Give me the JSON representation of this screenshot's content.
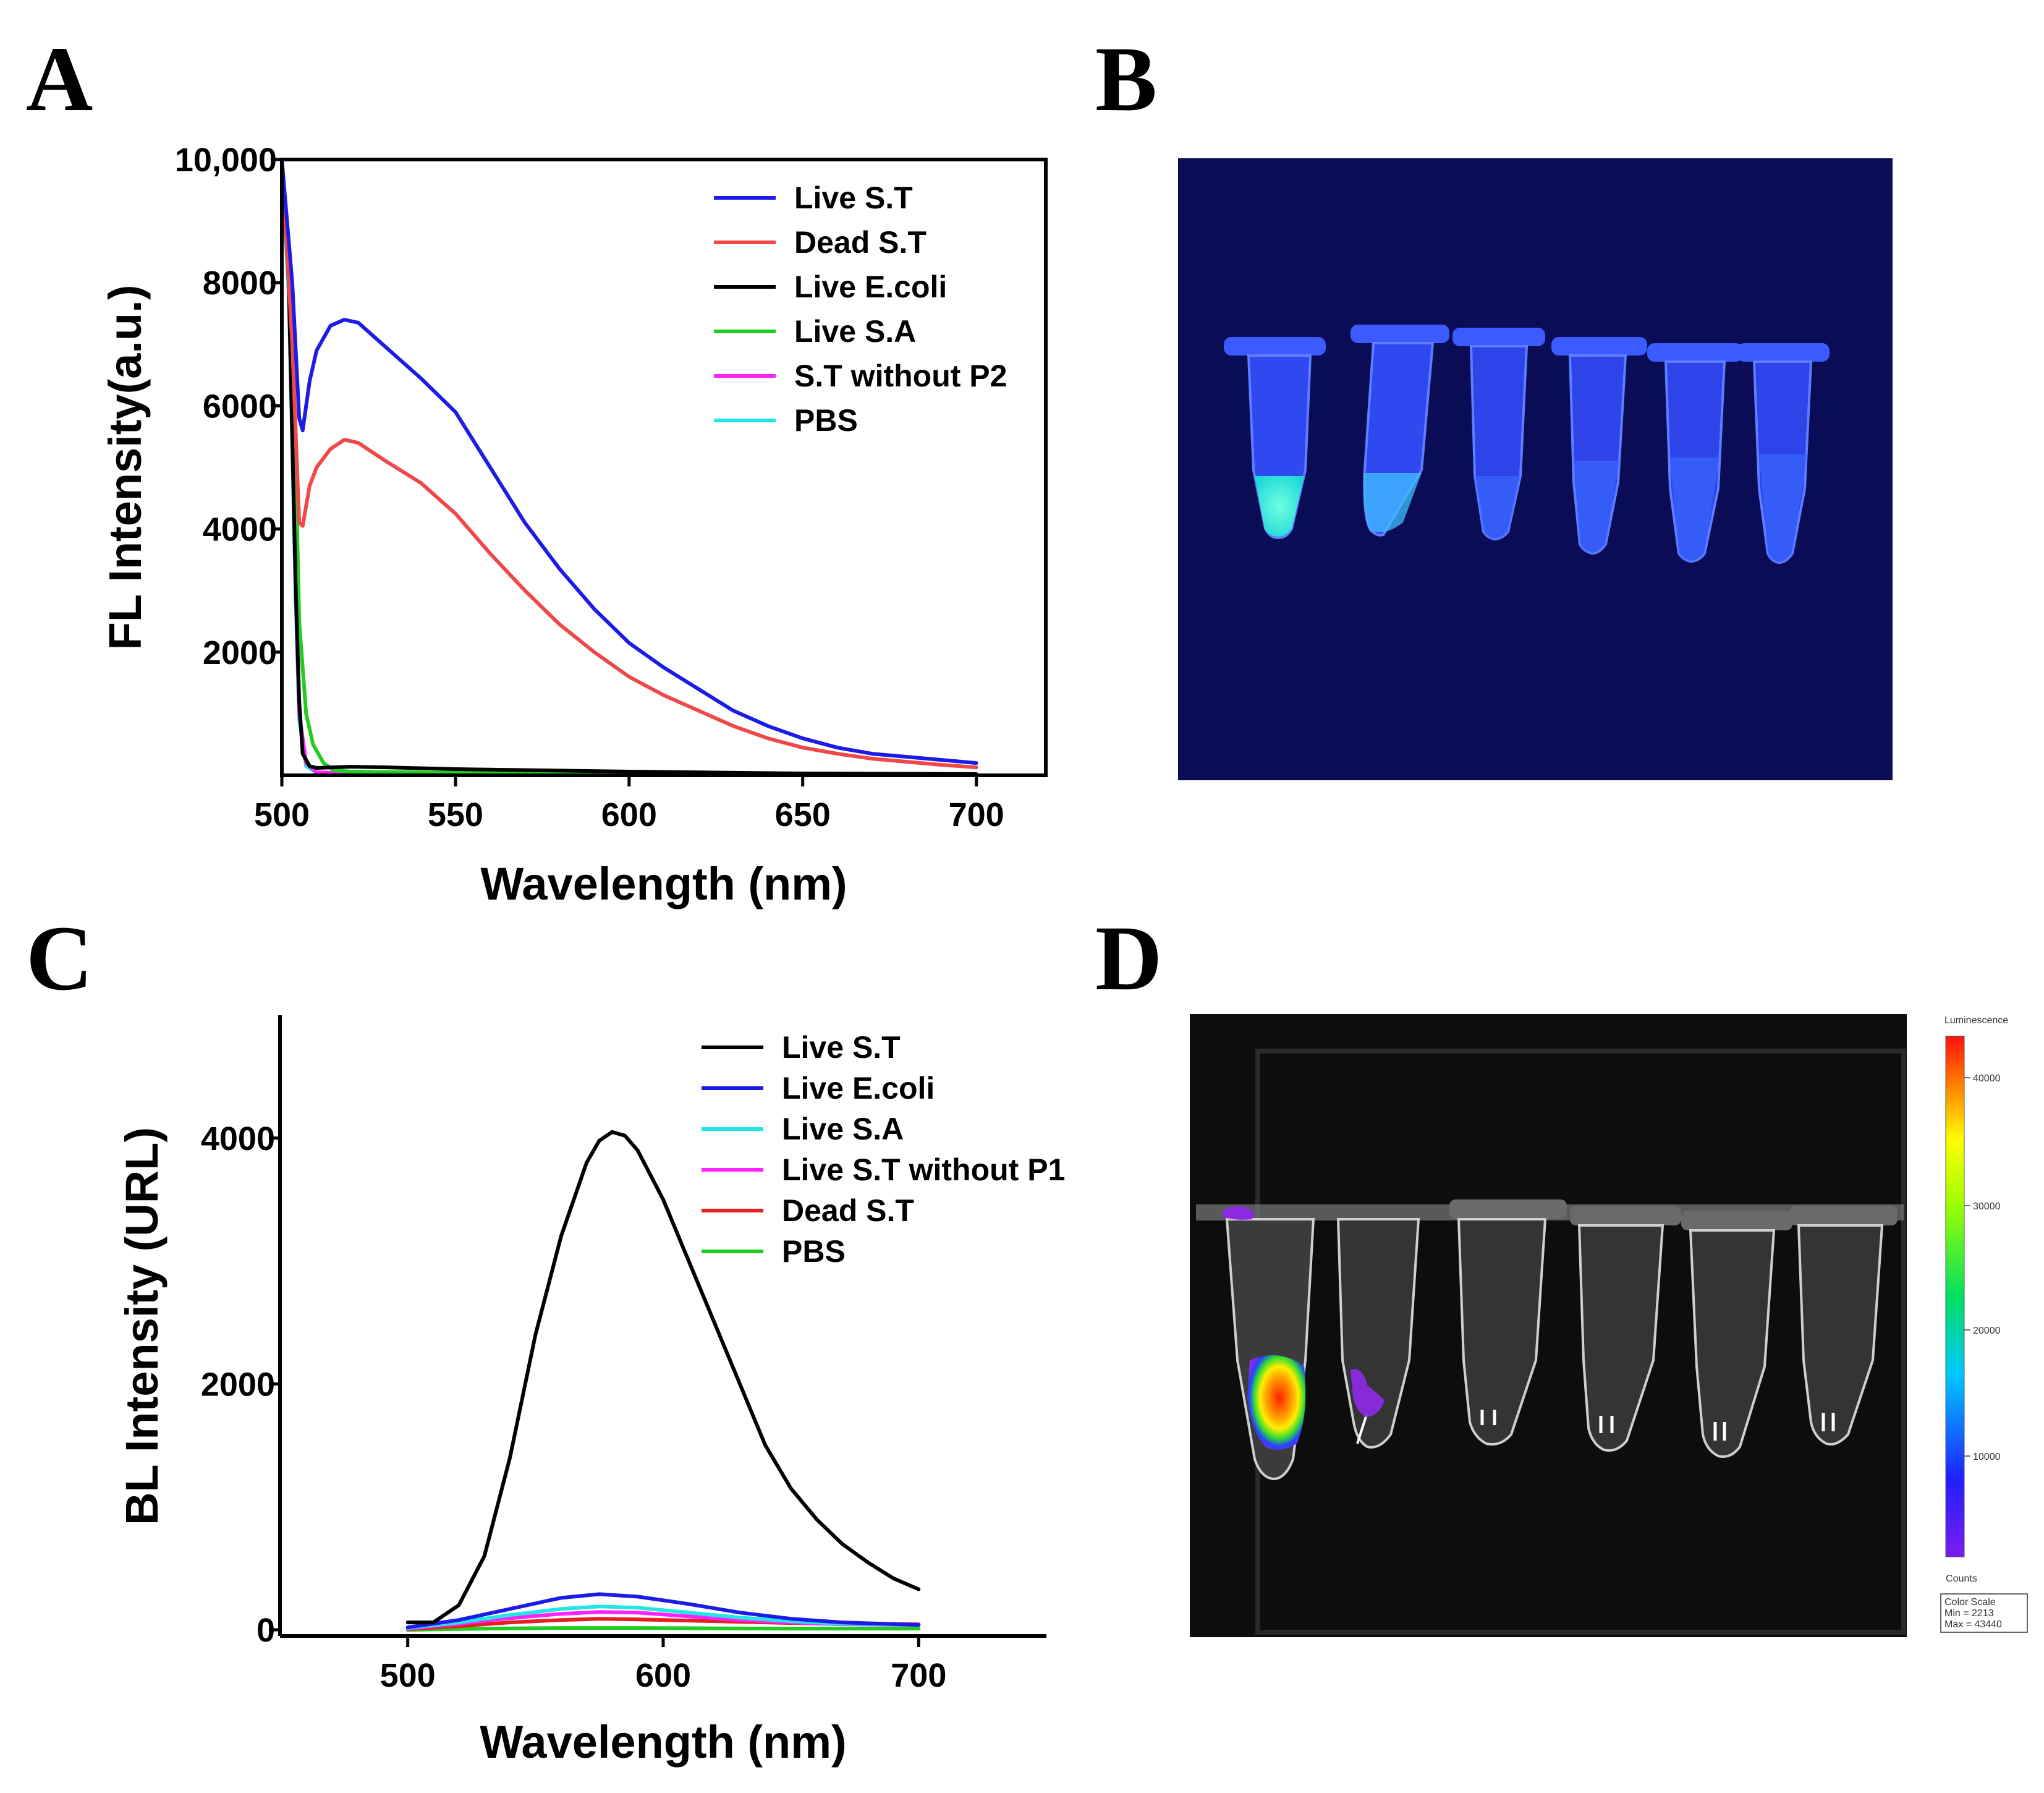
{
  "panels": {
    "a": "A",
    "b": "B",
    "c": "C",
    "d": "D"
  },
  "colors": {
    "blue": "#1c1ce6",
    "red": "#f04848",
    "black": "#000000",
    "green": "#22cc22",
    "magenta": "#ff22ff",
    "cyan": "#22e6e6"
  },
  "chart_data": [
    {
      "id": "A",
      "type": "line",
      "xlabel": "Wavelength (nm)",
      "ylabel": "FL Intensity(a.u.)",
      "xlim": [
        500,
        720
      ],
      "ylim": [
        0,
        10000
      ],
      "xticks": [
        500,
        550,
        600,
        650,
        700
      ],
      "xtick_labels": [
        "500",
        "550",
        "600",
        "650",
        "700"
      ],
      "yticks": [
        2000,
        4000,
        6000,
        8000,
        10000
      ],
      "ytick_labels": [
        "2000",
        "4000",
        "6000",
        "8000",
        "10,000"
      ],
      "legend_position": "top-right",
      "series": [
        {
          "name": "Live S.T",
          "color": "#1c1ce6",
          "x": [
            500,
            503,
            505,
            506,
            508,
            510,
            514,
            518,
            522,
            530,
            540,
            550,
            560,
            570,
            580,
            590,
            600,
            610,
            620,
            630,
            640,
            650,
            660,
            670,
            680,
            690,
            700
          ],
          "y": [
            10000,
            8000,
            5800,
            5600,
            6400,
            6900,
            7300,
            7400,
            7350,
            6950,
            6450,
            5900,
            5000,
            4100,
            3350,
            2700,
            2150,
            1750,
            1400,
            1050,
            800,
            600,
            450,
            350,
            300,
            250,
            200
          ]
        },
        {
          "name": "Dead S.T",
          "color": "#f04848",
          "x": [
            500,
            503,
            505,
            506,
            508,
            510,
            514,
            518,
            522,
            530,
            540,
            550,
            560,
            570,
            580,
            590,
            600,
            610,
            620,
            630,
            640,
            650,
            660,
            670,
            680,
            690,
            700
          ],
          "y": [
            10000,
            7000,
            4100,
            4050,
            4700,
            5000,
            5300,
            5450,
            5400,
            5100,
            4750,
            4250,
            3600,
            3000,
            2450,
            2000,
            1600,
            1300,
            1050,
            800,
            600,
            450,
            350,
            270,
            220,
            170,
            130
          ]
        },
        {
          "name": "Live E.coli",
          "color": "#000000",
          "x": [
            500,
            502,
            504,
            505,
            506,
            508,
            510,
            520,
            530,
            550,
            600,
            650,
            700
          ],
          "y": [
            10000,
            8000,
            3000,
            1200,
            350,
            150,
            120,
            140,
            130,
            100,
            60,
            30,
            20
          ]
        },
        {
          "name": "Live S.A",
          "color": "#22cc22",
          "x": [
            500,
            502,
            504,
            505,
            507,
            509,
            512,
            515,
            520,
            550,
            600,
            650,
            700
          ],
          "y": [
            10000,
            8500,
            5000,
            2500,
            1000,
            500,
            200,
            80,
            60,
            40,
            30,
            20,
            10
          ]
        },
        {
          "name": "S.T without P2",
          "color": "#ff22ff",
          "x": [
            500,
            502,
            504,
            505,
            507,
            510,
            520,
            550,
            600,
            650,
            700
          ],
          "y": [
            10000,
            8000,
            3000,
            1000,
            200,
            50,
            30,
            20,
            15,
            10,
            10
          ]
        },
        {
          "name": "PBS",
          "color": "#22e6e6",
          "x": [
            500,
            502,
            504,
            505,
            507,
            510,
            520,
            550,
            600,
            650,
            700
          ],
          "y": [
            10000,
            7800,
            2800,
            900,
            150,
            40,
            25,
            15,
            10,
            8,
            5
          ]
        }
      ]
    },
    {
      "id": "C",
      "type": "line",
      "xlabel": "Wavelength (nm)",
      "ylabel": "BL Intensity (URL)",
      "xlim": [
        450,
        750
      ],
      "ylim": [
        -50,
        5000
      ],
      "xticks": [
        500,
        600,
        700
      ],
      "xtick_labels": [
        "500",
        "600",
        "700"
      ],
      "yticks": [
        0,
        2000,
        4000
      ],
      "ytick_labels": [
        "0",
        "2000",
        "4000"
      ],
      "legend_position": "top-right",
      "series": [
        {
          "name": "Live S.T",
          "color": "#000000",
          "x": [
            500,
            510,
            520,
            530,
            540,
            550,
            560,
            570,
            575,
            580,
            585,
            590,
            600,
            610,
            620,
            630,
            640,
            650,
            660,
            670,
            680,
            690,
            700
          ],
          "y": [
            60,
            60,
            200,
            600,
            1400,
            2400,
            3200,
            3800,
            3980,
            4050,
            4020,
            3900,
            3500,
            3000,
            2500,
            2000,
            1500,
            1150,
            900,
            700,
            550,
            420,
            330
          ]
        },
        {
          "name": "Live E.coli",
          "color": "#1c1ce6",
          "x": [
            500,
            520,
            540,
            560,
            575,
            590,
            610,
            630,
            650,
            670,
            700
          ],
          "y": [
            20,
            80,
            170,
            260,
            290,
            270,
            210,
            140,
            90,
            60,
            40
          ]
        },
        {
          "name": "Live S.A",
          "color": "#22e6e6",
          "x": [
            500,
            520,
            540,
            560,
            575,
            590,
            610,
            630,
            650,
            670,
            700
          ],
          "y": [
            15,
            60,
            120,
            170,
            190,
            180,
            140,
            100,
            70,
            50,
            40
          ]
        },
        {
          "name": "Live S.T  without P1",
          "color": "#ff22ff",
          "x": [
            500,
            520,
            540,
            560,
            575,
            590,
            610,
            630,
            650,
            670,
            700
          ],
          "y": [
            10,
            50,
            95,
            130,
            145,
            140,
            110,
            80,
            60,
            45,
            40
          ]
        },
        {
          "name": "Dead S.T",
          "color": "#e62020",
          "x": [
            500,
            520,
            540,
            560,
            575,
            590,
            610,
            630,
            650,
            670,
            700
          ],
          "y": [
            5,
            30,
            60,
            80,
            90,
            85,
            75,
            65,
            55,
            50,
            45
          ]
        },
        {
          "name": "PBS",
          "color": "#22cc22",
          "x": [
            500,
            530,
            560,
            590,
            620,
            650,
            700
          ],
          "y": [
            0,
            10,
            15,
            15,
            12,
            10,
            10
          ]
        }
      ]
    }
  ],
  "imaging": {
    "title": "Luminescence",
    "scale_ticks": [
      "40000",
      "30000",
      "20000",
      "10000"
    ],
    "counts_label": "Counts",
    "color_scale_label": "Color Scale",
    "min_label": "Min = 2213",
    "max_label": "Max = 43440"
  }
}
